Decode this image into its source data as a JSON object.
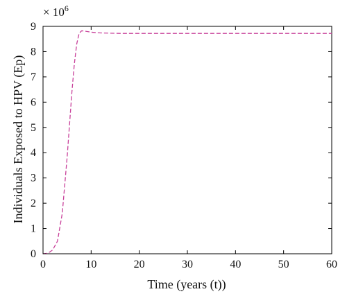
{
  "chart_data": {
    "type": "line",
    "title": "",
    "xlabel": "Time (years (t))",
    "ylabel": "Individuals Exposed to HPV (Ep)",
    "xlim": [
      0,
      60
    ],
    "ylim": [
      0,
      9
    ],
    "x_ticks": [
      "0",
      "10",
      "20",
      "30",
      "40",
      "50",
      "60"
    ],
    "y_ticks": [
      "0",
      "1",
      "2",
      "3",
      "4",
      "5",
      "6",
      "7",
      "8",
      "9"
    ],
    "y_multiplier": {
      "base": "× 10",
      "exponent": "6"
    },
    "grid": false,
    "legend": "none",
    "series": [
      {
        "line_style": "dashed",
        "color": "#c8409a",
        "x": [
          0,
          1,
          2,
          3,
          4,
          5,
          6,
          6.5,
          7,
          7.5,
          8,
          8.5,
          9,
          10,
          11,
          12,
          14,
          16,
          20,
          25,
          30,
          40,
          50,
          60
        ],
        "y": [
          0,
          0.02,
          0.15,
          0.5,
          1.6,
          3.8,
          6.4,
          7.5,
          8.3,
          8.72,
          8.82,
          8.82,
          8.8,
          8.77,
          8.75,
          8.74,
          8.73,
          8.72,
          8.72,
          8.72,
          8.72,
          8.72,
          8.72,
          8.72
        ]
      }
    ]
  }
}
